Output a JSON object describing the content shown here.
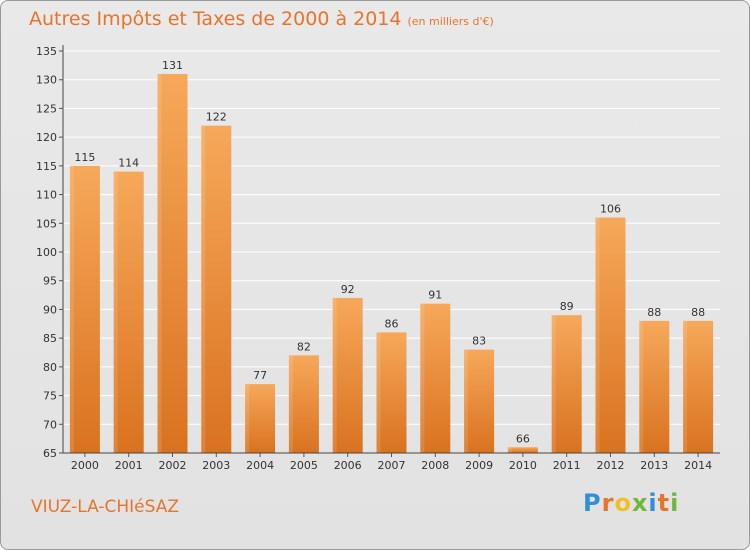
{
  "header": {
    "title": "Autres Impôts et Taxes de 2000 à 2014",
    "unit": "(en milliers d'€)"
  },
  "footer": {
    "commune": "VIUZ-LA-CHIéSAZ",
    "logo": {
      "letters": [
        "P",
        "r",
        "o",
        "x",
        "i",
        "t",
        "i"
      ],
      "colors": [
        "#2f8fd8",
        "#e8742a",
        "#f0c02a",
        "#6fb83a",
        "#2f8fd8",
        "#e8742a",
        "#6fb83a"
      ]
    }
  },
  "colors": {
    "bar_light": "#f6a85a",
    "bar_dark": "#d9721f",
    "title": "#e8742a",
    "grid": "#ffffff"
  },
  "chart_data": {
    "type": "bar",
    "categories": [
      "2000",
      "2001",
      "2002",
      "2003",
      "2004",
      "2005",
      "2006",
      "2007",
      "2008",
      "2009",
      "2010",
      "2011",
      "2012",
      "2013",
      "2014"
    ],
    "values": [
      115,
      114,
      131,
      122,
      77,
      82,
      92,
      86,
      91,
      83,
      66,
      89,
      106,
      88,
      88
    ],
    "yticks": [
      65,
      70,
      75,
      80,
      85,
      90,
      95,
      100,
      105,
      110,
      115,
      120,
      125,
      130,
      135
    ],
    "ylim": [
      65,
      135
    ],
    "grid": true,
    "legend": "none"
  }
}
